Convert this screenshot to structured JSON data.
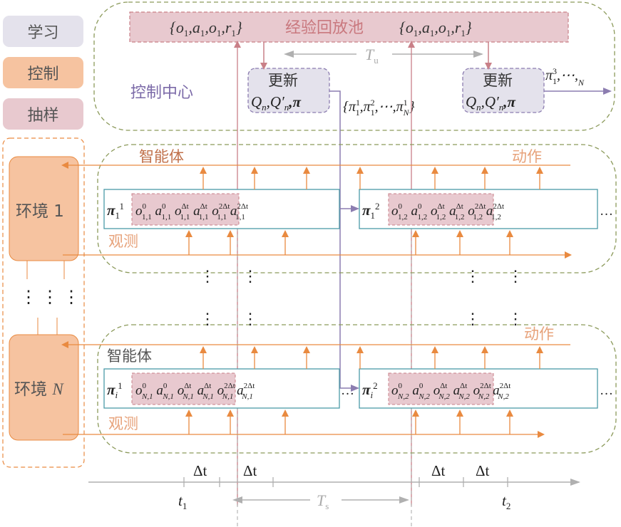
{
  "legend": {
    "learn": "学习",
    "control": "控制",
    "sample": "抽样"
  },
  "colors": {
    "learn": "#e4e2ec",
    "control": "#f6c3a0",
    "sample": "#e8c9cf",
    "orange": "#e98a40",
    "purple": "#8c7db0",
    "green_dash": "#8c9a5b",
    "teal": "#4a9aa8",
    "gray": "#aaaaaa"
  },
  "control_center": {
    "label": "控制中心",
    "replay_pool": "经验回放池",
    "tuple": "{o1,a1,o1,r1}",
    "update_label": "更新",
    "update_params": "Qn,Q′n,π",
    "policy_set": "{π11,π12,⋯,π1N}",
    "policy_next": "π13,⋯,N",
    "t_update": "Tu"
  },
  "environments": [
    {
      "label": "环境 1"
    },
    {
      "label": "环境 N"
    }
  ],
  "agent_rows": [
    {
      "agent_label": "智能体",
      "action_label": "动作",
      "observe_label": "观测",
      "policy_a": "π1 1",
      "policy_b": "π1 2",
      "seq_a_sampled": "o0 1,1 a0 1,1 oΔt 1,1",
      "seq_a_rest": "aΔt 1,1 o2Δt 1,1 a2Δt 1,1",
      "seq_b_sampled": "o0 1,2 a0 1,2 oΔt 1,2",
      "seq_b_rest": "aΔt 1,2 o2Δt 1,2 a2Δt 1,2",
      "ellipsis": "…"
    },
    {
      "agent_label": "智能体",
      "action_label": "动作",
      "observe_label": "观测",
      "policy_a": "πi 1",
      "policy_b": "πi 2",
      "seq_a_sampled": "o0 N,1 a0 N,1 oΔt N,1",
      "seq_a_rest": "aΔt N,1 o2Δt N,1 a2Δt N,1",
      "seq_b_sampled": "o0 N,2 a0 N,2 oΔt N,2",
      "seq_b_rest": "aΔt N,2 o2Δt N,2 a2Δt N,2",
      "ellipsis": "…"
    }
  ],
  "timeline": {
    "dt": "Δt",
    "t1": "t1",
    "t2": "t2",
    "t_sample": "Ts"
  }
}
